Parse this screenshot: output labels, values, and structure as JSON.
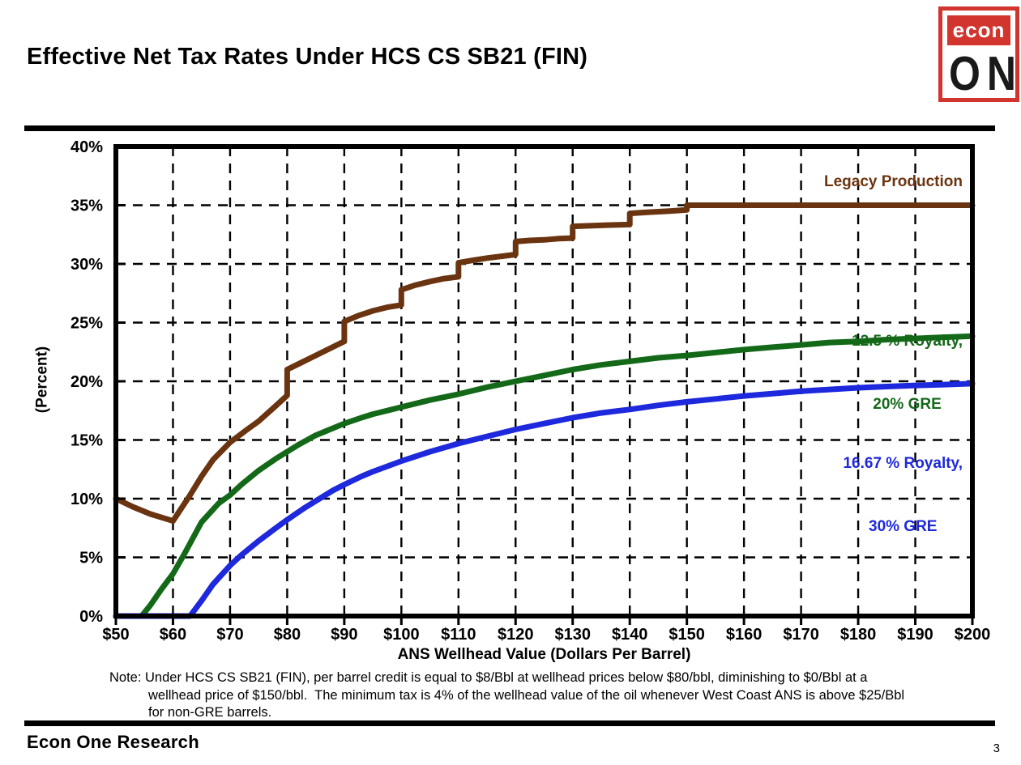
{
  "header": {
    "title": "Effective Net Tax Rates Under HCS CS SB21 (FIN)"
  },
  "logo": {
    "top_text": "econ",
    "bottom_text": "ONE",
    "red": "#d2342e"
  },
  "chart_data": {
    "type": "line",
    "title": "Effective Net Tax Rates Under HCS CS SB21 (FIN)",
    "xlabel": "ANS Wellhead Value (Dollars Per Barrel)",
    "ylabel": "(Percent)",
    "xlim": [
      50,
      200
    ],
    "ylim": [
      0,
      40
    ],
    "x_ticks": [
      50,
      60,
      70,
      80,
      90,
      100,
      110,
      120,
      130,
      140,
      150,
      160,
      170,
      180,
      190,
      200
    ],
    "x_tick_labels": [
      "$50",
      "$60",
      "$70",
      "$80",
      "$90",
      "$100",
      "$110",
      "$120",
      "$130",
      "$140",
      "$150",
      "$160",
      "$170",
      "$180",
      "$190",
      "$200"
    ],
    "y_ticks": [
      0,
      5,
      10,
      15,
      20,
      25,
      30,
      35,
      40
    ],
    "y_tick_labels": [
      "0%",
      "5%",
      "10%",
      "15%",
      "20%",
      "25%",
      "30%",
      "35%",
      "40%"
    ],
    "grid": "dashed",
    "legend_position": "inside-right",
    "series": [
      {
        "name": "Legacy Production",
        "color": "#6b3410",
        "points": [
          [
            50,
            10.0
          ],
          [
            53,
            9.3
          ],
          [
            56,
            8.7
          ],
          [
            58,
            8.4
          ],
          [
            60,
            8.1
          ],
          [
            63,
            10.3
          ],
          [
            65,
            11.9
          ],
          [
            67,
            13.3
          ],
          [
            70,
            14.8
          ],
          [
            73,
            15.9
          ],
          [
            75,
            16.6
          ],
          [
            78,
            17.9
          ],
          [
            80,
            18.8
          ],
          [
            80,
            21.0
          ],
          [
            82.5,
            21.6
          ],
          [
            85,
            22.2
          ],
          [
            87.5,
            22.8
          ],
          [
            90,
            23.4
          ],
          [
            90,
            25.1
          ],
          [
            92.5,
            25.6
          ],
          [
            95,
            26.0
          ],
          [
            97.5,
            26.3
          ],
          [
            100,
            26.5
          ],
          [
            100,
            27.8
          ],
          [
            102.5,
            28.2
          ],
          [
            105,
            28.5
          ],
          [
            107.5,
            28.75
          ],
          [
            110,
            28.9
          ],
          [
            110,
            30.1
          ],
          [
            112.5,
            30.3
          ],
          [
            115,
            30.5
          ],
          [
            117.5,
            30.65
          ],
          [
            120,
            30.8
          ],
          [
            120,
            31.9
          ],
          [
            122.5,
            32.0
          ],
          [
            125,
            32.05
          ],
          [
            127.5,
            32.15
          ],
          [
            130,
            32.2
          ],
          [
            130,
            33.2
          ],
          [
            133,
            33.25
          ],
          [
            136,
            33.3
          ],
          [
            140,
            33.35
          ],
          [
            140,
            34.3
          ],
          [
            143,
            34.4
          ],
          [
            147,
            34.5
          ],
          [
            150,
            34.6
          ],
          [
            150,
            35.0
          ],
          [
            200,
            35.0
          ]
        ]
      },
      {
        "name": "12.5 % Royalty, 20% GRE",
        "color": "#146919",
        "points": [
          [
            50,
            0
          ],
          [
            54.5,
            0
          ],
          [
            56,
            0.9
          ],
          [
            58,
            2.3
          ],
          [
            60,
            3.6
          ],
          [
            62,
            5.3
          ],
          [
            65,
            8.0
          ],
          [
            68,
            9.6
          ],
          [
            70,
            10.3
          ],
          [
            72,
            11.2
          ],
          [
            75,
            12.4
          ],
          [
            78,
            13.4
          ],
          [
            80,
            14.0
          ],
          [
            82,
            14.6
          ],
          [
            85,
            15.4
          ],
          [
            88,
            16.0
          ],
          [
            90,
            16.4
          ],
          [
            93,
            16.9
          ],
          [
            95,
            17.2
          ],
          [
            100,
            17.8
          ],
          [
            105,
            18.4
          ],
          [
            110,
            18.9
          ],
          [
            115,
            19.5
          ],
          [
            120,
            20.0
          ],
          [
            125,
            20.5
          ],
          [
            130,
            21.0
          ],
          [
            135,
            21.4
          ],
          [
            140,
            21.7
          ],
          [
            145,
            22.0
          ],
          [
            150,
            22.2
          ],
          [
            155,
            22.45
          ],
          [
            160,
            22.7
          ],
          [
            165,
            22.9
          ],
          [
            170,
            23.1
          ],
          [
            175,
            23.3
          ],
          [
            180,
            23.4
          ],
          [
            185,
            23.55
          ],
          [
            190,
            23.65
          ],
          [
            195,
            23.75
          ],
          [
            200,
            23.85
          ]
        ]
      },
      {
        "name": "16.67 % Royalty, 30% GRE",
        "color": "#1e28dc",
        "points": [
          [
            50,
            0
          ],
          [
            63,
            0
          ],
          [
            65,
            1.3
          ],
          [
            67,
            2.7
          ],
          [
            70,
            4.3
          ],
          [
            72,
            5.2
          ],
          [
            75,
            6.4
          ],
          [
            78,
            7.5
          ],
          [
            80,
            8.2
          ],
          [
            83,
            9.2
          ],
          [
            85,
            9.8
          ],
          [
            88,
            10.7
          ],
          [
            90,
            11.2
          ],
          [
            93,
            11.9
          ],
          [
            95,
            12.3
          ],
          [
            100,
            13.2
          ],
          [
            105,
            14.0
          ],
          [
            110,
            14.7
          ],
          [
            115,
            15.3
          ],
          [
            120,
            15.9
          ],
          [
            125,
            16.4
          ],
          [
            130,
            16.9
          ],
          [
            135,
            17.3
          ],
          [
            140,
            17.6
          ],
          [
            145,
            17.95
          ],
          [
            150,
            18.25
          ],
          [
            155,
            18.5
          ],
          [
            160,
            18.75
          ],
          [
            165,
            18.95
          ],
          [
            170,
            19.15
          ],
          [
            175,
            19.3
          ],
          [
            180,
            19.45
          ],
          [
            185,
            19.55
          ],
          [
            190,
            19.65
          ],
          [
            195,
            19.72
          ],
          [
            200,
            19.8
          ]
        ]
      }
    ]
  },
  "legend": {
    "legacy": {
      "label": "Legacy Production"
    },
    "green": {
      "line1": "12.5 % Royalty,",
      "line2": "20% GRE"
    },
    "blue": {
      "line1": "16.67 % Royalty,",
      "line2": "30% GRE"
    }
  },
  "note": {
    "line1": "Note: Under HCS CS SB21 (FIN), per barrel credit is equal to $8/Bbl at wellhead prices below $80/bbl, diminishing to $0/Bbl at a",
    "line2": "wellhead price of $150/bbl.  The minimum tax is 4% of the wellhead value of the oil whenever West Coast ANS is above $25/Bbl",
    "line3": "for non-GRE barrels."
  },
  "footer": {
    "brand": "Econ One Research",
    "page_number": "3"
  }
}
